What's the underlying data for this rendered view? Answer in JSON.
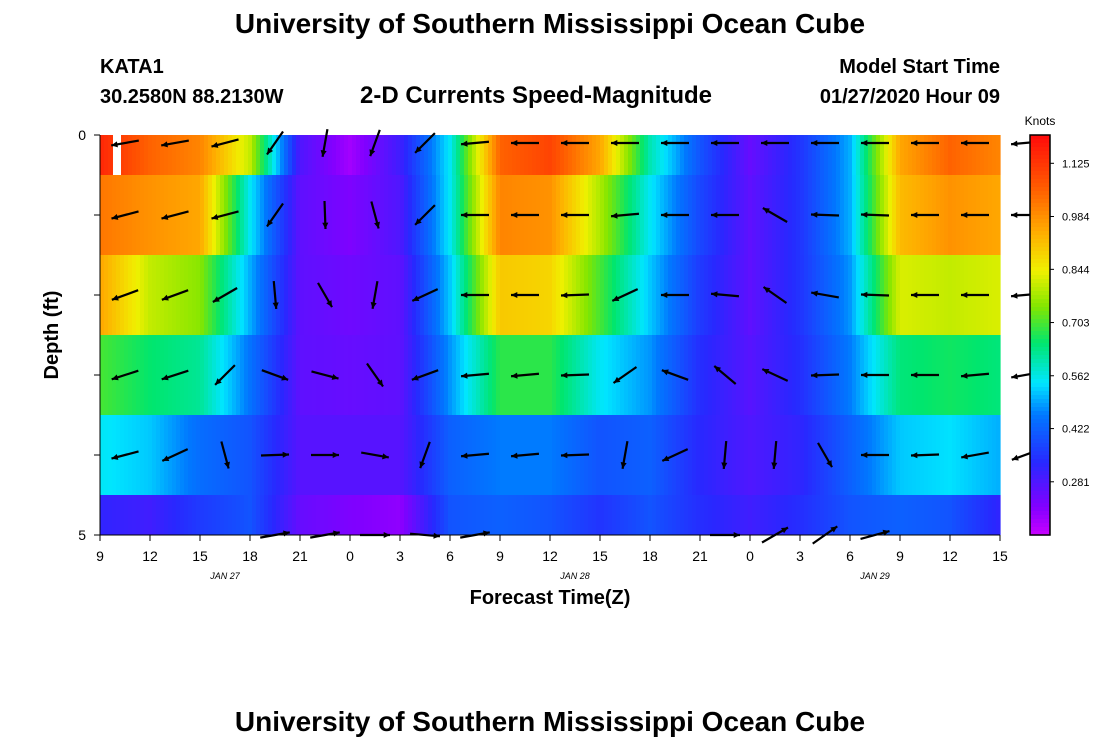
{
  "header": {
    "title": "University of Southern Mississippi Ocean Cube",
    "footer_title": "University of Southern Mississippi Ocean Cube",
    "station": "KATA1",
    "coords": "30.2580N 88.2130W",
    "subtitle": "2-D Currents Speed-Magnitude",
    "model_start_label": "Model Start Time",
    "model_start_value": "01/27/2020 Hour 09"
  },
  "chart_data": {
    "type": "heatmap",
    "title": "2-D Currents Speed-Magnitude",
    "xlabel": "Forecast Time(Z)",
    "ylabel": "Depth (ft)",
    "ylim": [
      0,
      5
    ],
    "y_ticks": [
      "0",
      "5"
    ],
    "x_ticks": [
      "9",
      "12",
      "15",
      "18",
      "21",
      "0",
      "3",
      "6",
      "9",
      "12",
      "15",
      "18",
      "21",
      "0",
      "3",
      "6",
      "9",
      "12",
      "15"
    ],
    "date_labels": [
      {
        "label": "JAN  27",
        "tick_index": 2
      },
      {
        "label": "JAN  28",
        "tick_index": 9
      },
      {
        "label": "JAN  29",
        "tick_index": 15
      }
    ],
    "colorbar": {
      "unit": "Knots",
      "ticks": [
        1.125,
        0.984,
        0.844,
        0.703,
        0.562,
        0.422,
        0.281
      ],
      "min": 0.14,
      "max": 1.2
    },
    "depth_levels": [
      0.25,
      1.25,
      2.25,
      3.25,
      4.25,
      4.75
    ],
    "time_hours": [
      0,
      3,
      6,
      9,
      12,
      15,
      18,
      21,
      24,
      27,
      30,
      33,
      36,
      39,
      42,
      45,
      48,
      51,
      54
    ],
    "speed_knots": [
      [
        1.15,
        1.05,
        1.0,
        0.8,
        0.28,
        0.18,
        0.3,
        0.55,
        1.05,
        1.1,
        0.95,
        0.6,
        0.4,
        0.25,
        0.35,
        0.5,
        0.95,
        1.05,
        1.0
      ],
      [
        1.02,
        0.98,
        0.95,
        0.55,
        0.26,
        0.22,
        0.28,
        0.55,
        1.0,
        0.98,
        0.78,
        0.55,
        0.38,
        0.26,
        0.35,
        0.5,
        0.92,
        0.98,
        0.95
      ],
      [
        0.95,
        0.8,
        0.75,
        0.5,
        0.26,
        0.24,
        0.26,
        0.52,
        0.9,
        0.88,
        0.7,
        0.52,
        0.36,
        0.26,
        0.35,
        0.48,
        0.82,
        0.8,
        0.82
      ],
      [
        0.7,
        0.65,
        0.62,
        0.45,
        0.26,
        0.25,
        0.26,
        0.48,
        0.68,
        0.68,
        0.55,
        0.48,
        0.34,
        0.27,
        0.34,
        0.46,
        0.64,
        0.66,
        0.64
      ],
      [
        0.55,
        0.52,
        0.44,
        0.4,
        0.27,
        0.27,
        0.27,
        0.42,
        0.46,
        0.46,
        0.4,
        0.42,
        0.33,
        0.28,
        0.32,
        0.42,
        0.52,
        0.54,
        0.5
      ],
      [
        0.32,
        0.3,
        0.36,
        0.4,
        0.25,
        0.22,
        0.2,
        0.4,
        0.42,
        0.4,
        0.35,
        0.4,
        0.34,
        0.3,
        0.34,
        0.4,
        0.42,
        0.4,
        0.32
      ]
    ],
    "direction_deg": [
      [
        260,
        260,
        255,
        215,
        190,
        200,
        225,
        265,
        270,
        270,
        270,
        270,
        270,
        270,
        270,
        270,
        270,
        270,
        265
      ],
      [
        255,
        255,
        255,
        215,
        178,
        165,
        225,
        270,
        270,
        270,
        265,
        270,
        270,
        300,
        272,
        272,
        270,
        270,
        270
      ],
      [
        250,
        250,
        240,
        175,
        150,
        190,
        245,
        270,
        270,
        268,
        245,
        270,
        275,
        305,
        280,
        272,
        270,
        270,
        265
      ],
      [
        252,
        252,
        225,
        110,
        105,
        145,
        250,
        265,
        265,
        268,
        235,
        290,
        310,
        295,
        268,
        270,
        270,
        265,
        260
      ],
      [
        255,
        245,
        165,
        88,
        90,
        100,
        200,
        265,
        265,
        268,
        190,
        245,
        185,
        185,
        150,
        270,
        268,
        260,
        250
      ],
      [
        0,
        0,
        0,
        80,
        80,
        90,
        95,
        80,
        0,
        0,
        0,
        0,
        90,
        60,
        55,
        75,
        0,
        0,
        0
      ]
    ]
  }
}
